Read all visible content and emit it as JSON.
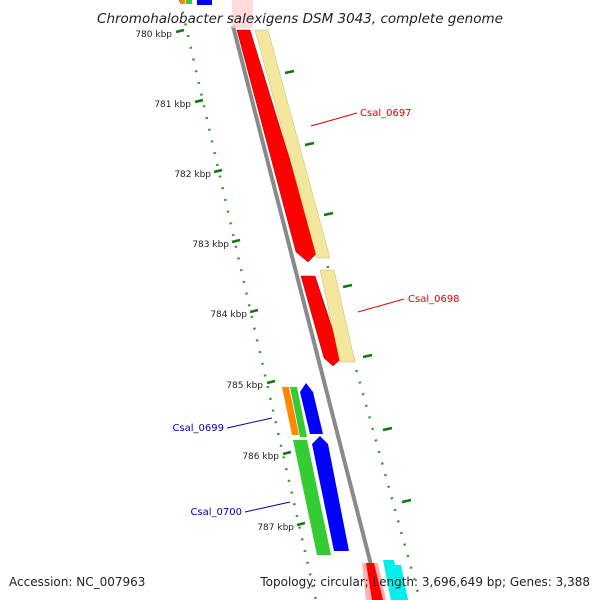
{
  "title": "Chromohalobacter salexigens DSM 3043, complete genome",
  "footer": {
    "accession": "Accession: NC_007963",
    "summary": "Topology: circular; Length: 3,696,649 bp; Genes: 3,388"
  },
  "ticks": [
    "780 kbp",
    "781 kbp",
    "782 kbp",
    "783 kbp",
    "784 kbp",
    "785 kbp",
    "786 kbp",
    "787 kbp"
  ],
  "gene_labels": [
    {
      "name": "Csal_0697",
      "color": "#dd0000"
    },
    {
      "name": "Csal_0698",
      "color": "#dd0000"
    },
    {
      "name": "Csal_0699",
      "color": "#0000aa"
    },
    {
      "name": "Csal_0700",
      "color": "#0000aa"
    }
  ],
  "colors": {
    "backbone": "#8a8a8a",
    "red": "#ff0000",
    "pale_yellow": "#f2e79c",
    "orange": "#ff8800",
    "green": "#33cc33",
    "blue": "#0000ff",
    "cyan": "#00eeee",
    "pink": "#ffb0b0",
    "dotted_track": "#339933",
    "tick_mark": "#117711"
  }
}
